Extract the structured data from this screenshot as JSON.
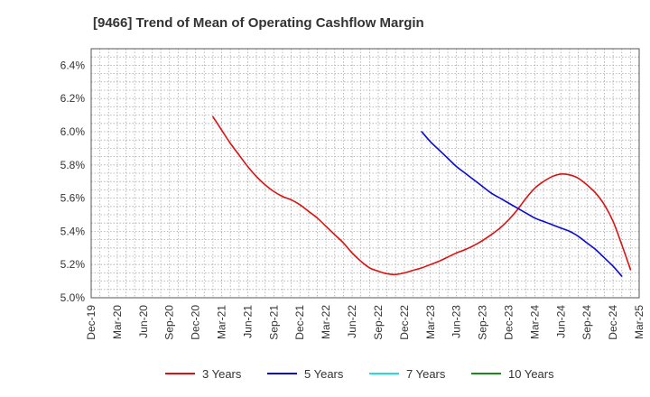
{
  "chart_data": {
    "type": "line",
    "title": "[9466]  Trend of Mean of Operating Cashflow Margin",
    "xlabel": "",
    "ylabel": "",
    "x_ticks": [
      "Dec-19",
      "Mar-20",
      "Jun-20",
      "Sep-20",
      "Dec-20",
      "Mar-21",
      "Jun-21",
      "Sep-21",
      "Dec-21",
      "Mar-22",
      "Jun-22",
      "Sep-22",
      "Dec-22",
      "Mar-23",
      "Jun-23",
      "Sep-23",
      "Dec-23",
      "Mar-24",
      "Jun-24",
      "Sep-24",
      "Dec-24",
      "Mar-25"
    ],
    "y_ticks": [
      "5.0%",
      "5.2%",
      "5.4%",
      "5.6%",
      "5.8%",
      "6.0%",
      "6.2%",
      "6.4%"
    ],
    "ylim": [
      5.0,
      6.5
    ],
    "y_tick_values": [
      5.0,
      5.2,
      5.4,
      5.6,
      5.8,
      6.0,
      6.2,
      6.4
    ],
    "grid": true,
    "legend_position": "bottom",
    "series": [
      {
        "name": "3 Years",
        "color": "#dd1111",
        "points": [
          [
            "Feb-21",
            6.09
          ],
          [
            "Mar-21",
            6.01
          ],
          [
            "Apr-21",
            5.93
          ],
          [
            "May-21",
            5.86
          ],
          [
            "Jun-21",
            5.79
          ],
          [
            "Jul-21",
            5.73
          ],
          [
            "Aug-21",
            5.68
          ],
          [
            "Sep-21",
            5.64
          ],
          [
            "Oct-21",
            5.61
          ],
          [
            "Nov-21",
            5.59
          ],
          [
            "Dec-21",
            5.56
          ],
          [
            "Jan-22",
            5.52
          ],
          [
            "Feb-22",
            5.48
          ],
          [
            "Mar-22",
            5.43
          ],
          [
            "Apr-22",
            5.38
          ],
          [
            "May-22",
            5.33
          ],
          [
            "Jun-22",
            5.27
          ],
          [
            "Jul-22",
            5.22
          ],
          [
            "Aug-22",
            5.18
          ],
          [
            "Sep-22",
            5.16
          ],
          [
            "Oct-22",
            5.145
          ],
          [
            "Nov-22",
            5.14
          ],
          [
            "Dec-22",
            5.15
          ],
          [
            "Jan-23",
            5.165
          ],
          [
            "Feb-23",
            5.18
          ],
          [
            "Mar-23",
            5.2
          ],
          [
            "Apr-23",
            5.22
          ],
          [
            "May-23",
            5.245
          ],
          [
            "Jun-23",
            5.27
          ],
          [
            "Jul-23",
            5.29
          ],
          [
            "Aug-23",
            5.315
          ],
          [
            "Sep-23",
            5.345
          ],
          [
            "Oct-23",
            5.38
          ],
          [
            "Nov-23",
            5.42
          ],
          [
            "Dec-23",
            5.47
          ],
          [
            "Jan-24",
            5.53
          ],
          [
            "Feb-24",
            5.6
          ],
          [
            "Mar-24",
            5.66
          ],
          [
            "Apr-24",
            5.7
          ],
          [
            "May-24",
            5.73
          ],
          [
            "Jun-24",
            5.745
          ],
          [
            "Jul-24",
            5.74
          ],
          [
            "Aug-24",
            5.72
          ],
          [
            "Sep-24",
            5.68
          ],
          [
            "Oct-24",
            5.63
          ],
          [
            "Nov-24",
            5.56
          ],
          [
            "Dec-24",
            5.46
          ],
          [
            "Jan-25",
            5.32
          ],
          [
            "Feb-25",
            5.17
          ]
        ]
      },
      {
        "name": "5 Years",
        "color": "#0a0ad4",
        "points": [
          [
            "Feb-23",
            6.0
          ],
          [
            "Mar-23",
            5.94
          ],
          [
            "Apr-23",
            5.89
          ],
          [
            "May-23",
            5.84
          ],
          [
            "Jun-23",
            5.79
          ],
          [
            "Jul-23",
            5.75
          ],
          [
            "Aug-23",
            5.71
          ],
          [
            "Sep-23",
            5.67
          ],
          [
            "Oct-23",
            5.63
          ],
          [
            "Nov-23",
            5.6
          ],
          [
            "Dec-23",
            5.57
          ],
          [
            "Jan-24",
            5.54
          ],
          [
            "Feb-24",
            5.51
          ],
          [
            "Mar-24",
            5.48
          ],
          [
            "Apr-24",
            5.46
          ],
          [
            "May-24",
            5.44
          ],
          [
            "Jun-24",
            5.42
          ],
          [
            "Jul-24",
            5.4
          ],
          [
            "Aug-24",
            5.37
          ],
          [
            "Sep-24",
            5.33
          ],
          [
            "Oct-24",
            5.29
          ],
          [
            "Nov-24",
            5.24
          ],
          [
            "Dec-24",
            5.19
          ],
          [
            "Jan-25",
            5.13
          ]
        ]
      },
      {
        "name": "7 Years",
        "color": "#22dddd",
        "points": []
      },
      {
        "name": "10 Years",
        "color": "#1a8a1a",
        "points": []
      }
    ]
  }
}
